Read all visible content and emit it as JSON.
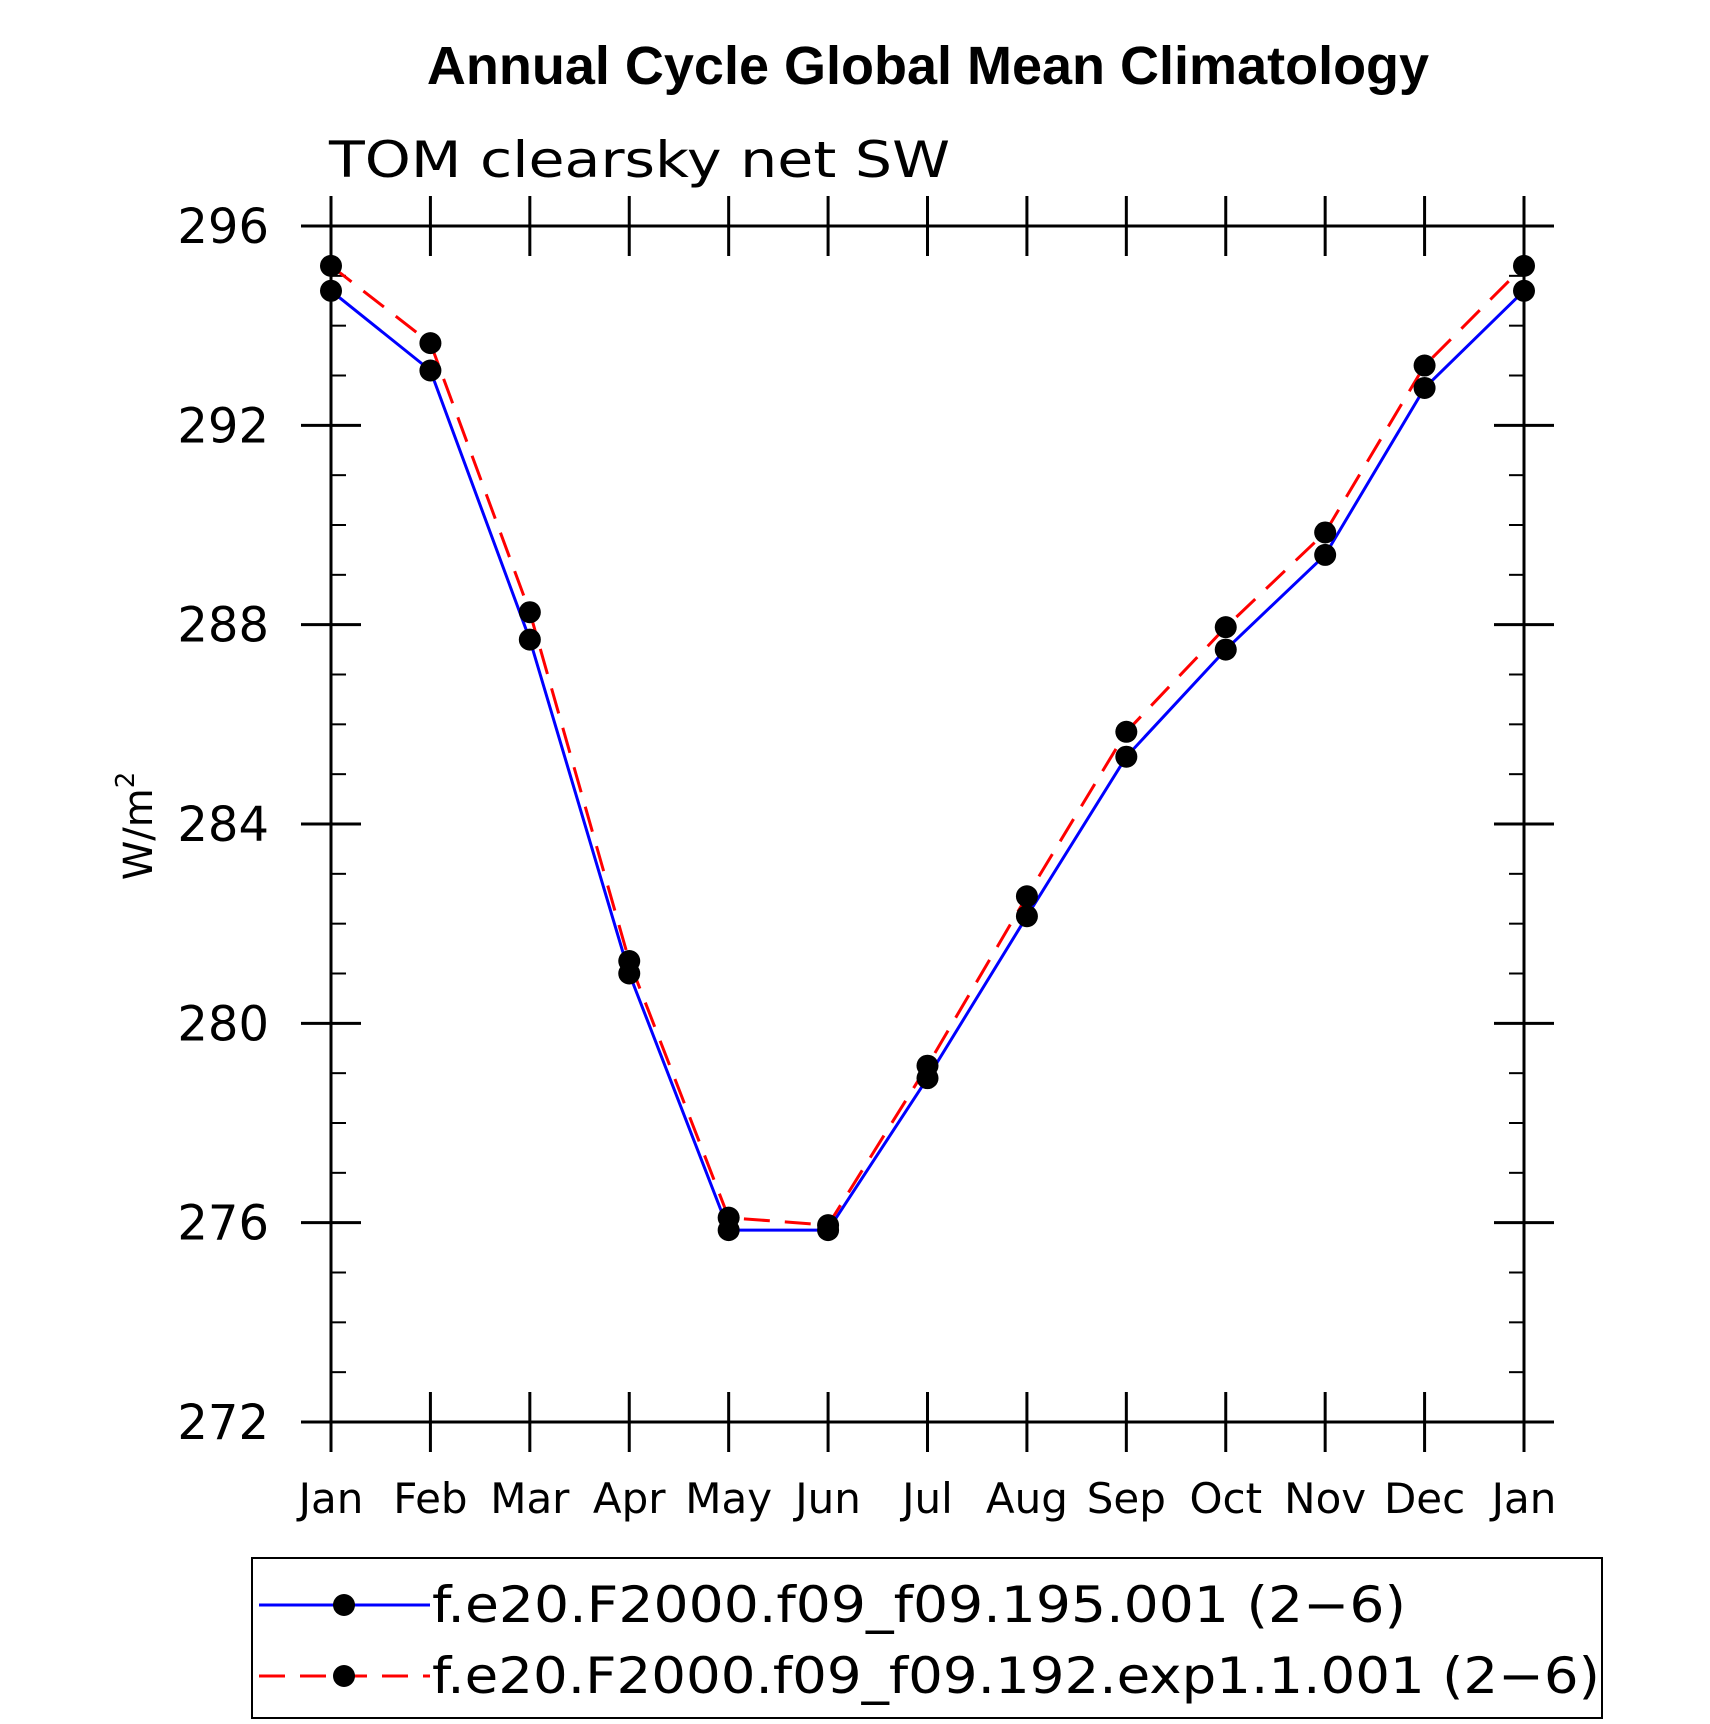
{
  "chart_data": {
    "type": "line",
    "title": "Annual Cycle Global Mean Climatology",
    "subtitle": "TOM clearsky net SW",
    "xlabel": "",
    "ylabel_base": "W/m",
    "ylabel_sup": "2",
    "ylim": [
      272,
      296
    ],
    "yticks": [
      "272",
      "276",
      "280",
      "284",
      "288",
      "292",
      "296"
    ],
    "yminor_step": 1,
    "categories": [
      "Jan",
      "Feb",
      "Mar",
      "Apr",
      "May",
      "Jun",
      "Jul",
      "Aug",
      "Sep",
      "Oct",
      "Nov",
      "Dec",
      "Jan"
    ],
    "series": [
      {
        "name": "f.e20.F2000.f09_f09.195.001 (2−6)",
        "color": "#0000ff",
        "dash": "solid",
        "marker": "filled-circle",
        "values": [
          294.7,
          293.1,
          287.7,
          281.0,
          275.85,
          275.85,
          278.9,
          282.15,
          285.35,
          287.5,
          289.4,
          292.75,
          294.7
        ]
      },
      {
        "name": "f.e20.F2000.f09_f09.192.exp1.1.001 (2−6)",
        "color": "#ff0000",
        "dash": "dashed",
        "marker": "filled-circle",
        "values": [
          295.2,
          293.65,
          288.25,
          281.25,
          276.1,
          275.95,
          279.15,
          282.55,
          285.85,
          287.95,
          289.85,
          293.2,
          295.2
        ]
      }
    ],
    "legend_position": "bottom"
  }
}
